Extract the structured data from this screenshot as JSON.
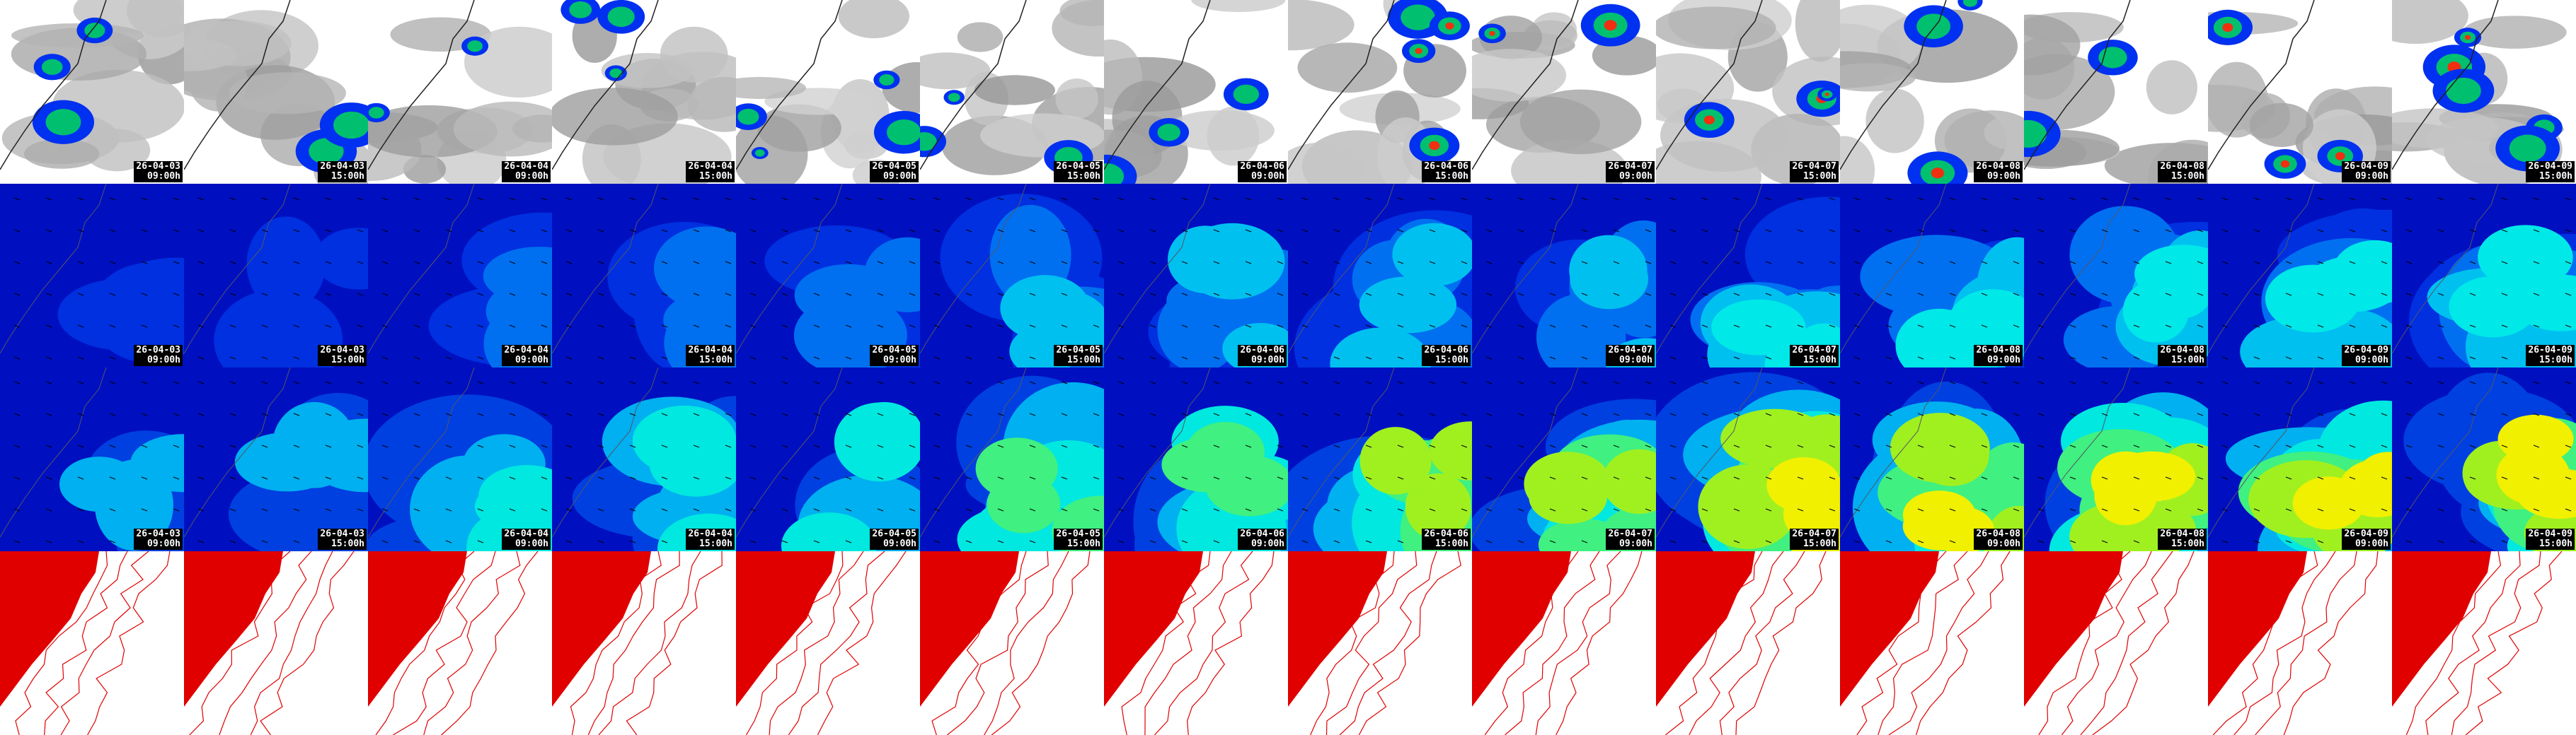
{
  "panels": [
    {
      "date": "26-04-03",
      "time": "09:00h"
    },
    {
      "date": "26-04-03",
      "time": "15:00h"
    },
    {
      "date": "26-04-04",
      "time": "09:00h"
    },
    {
      "date": "26-04-04",
      "time": "15:00h"
    },
    {
      "date": "26-04-05",
      "time": "09:00h"
    },
    {
      "date": "26-04-05",
      "time": "15:00h"
    },
    {
      "date": "26-04-06",
      "time": "09:00h"
    },
    {
      "date": "26-04-06",
      "time": "15:00h"
    },
    {
      "date": "26-04-07",
      "time": "09:00h"
    },
    {
      "date": "26-04-07",
      "time": "15:00h"
    },
    {
      "date": "26-04-08",
      "time": "09:00h"
    },
    {
      "date": "26-04-08",
      "time": "15:00h"
    },
    {
      "date": "26-04-09",
      "time": "09:00h"
    },
    {
      "date": "26-04-09",
      "time": "15:00h"
    }
  ]
}
